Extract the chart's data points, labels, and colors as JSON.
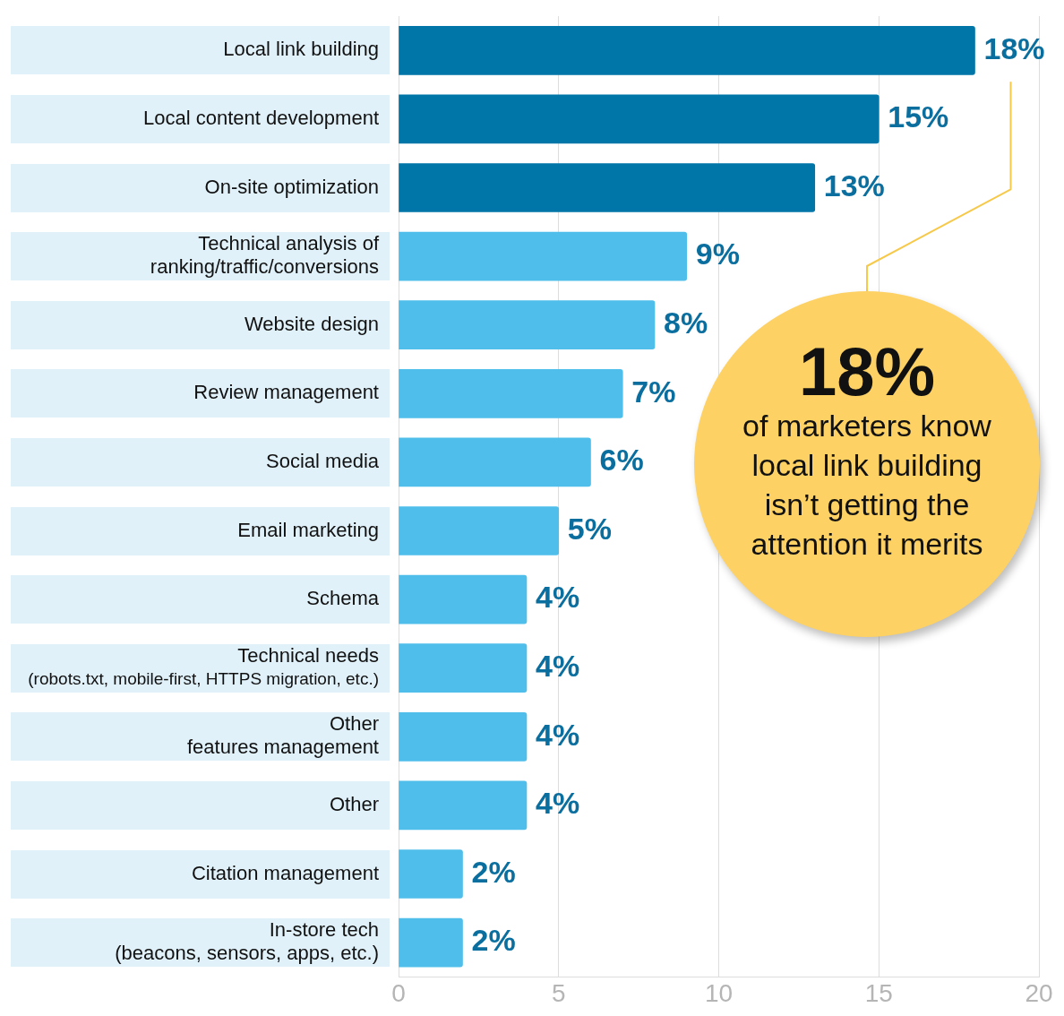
{
  "chart_data": {
    "type": "bar",
    "orientation": "horizontal",
    "categories": [
      "Local link building",
      "Local content development",
      "On-site optimization",
      "Technical analysis of\nranking/traffic/conversions",
      "Website design",
      "Review management",
      "Social media",
      "Email marketing",
      "Schema",
      "Technical needs\n(robots.txt, mobile-first, HTTPS migration, etc.)",
      "Other\nfeatures management",
      "Other",
      "Citation management",
      "In-store tech\n(beacons, sensors, apps, etc.)"
    ],
    "values": [
      18,
      15,
      13,
      9,
      8,
      7,
      6,
      5,
      4,
      4,
      4,
      4,
      2,
      2
    ],
    "colors": [
      "#0076a8",
      "#0076a8",
      "#0076a8",
      "#4fbeea",
      "#4fbeea",
      "#4fbeea",
      "#4fbeea",
      "#4fbeea",
      "#4fbeea",
      "#4fbeea",
      "#4fbeea",
      "#4fbeea",
      "#4fbeea",
      "#4fbeea"
    ],
    "value_labels": [
      "18%",
      "15%",
      "13%",
      "9%",
      "8%",
      "7%",
      "6%",
      "5%",
      "4%",
      "4%",
      "4%",
      "4%",
      "2%",
      "2%"
    ],
    "xlim": [
      0,
      20
    ],
    "xticks": [
      0,
      5,
      10,
      15,
      20
    ],
    "grid": "x",
    "legend": false,
    "annotations": [
      "18%",
      "of marketers know local link building isn’t getting the attention it merits"
    ]
  }
}
